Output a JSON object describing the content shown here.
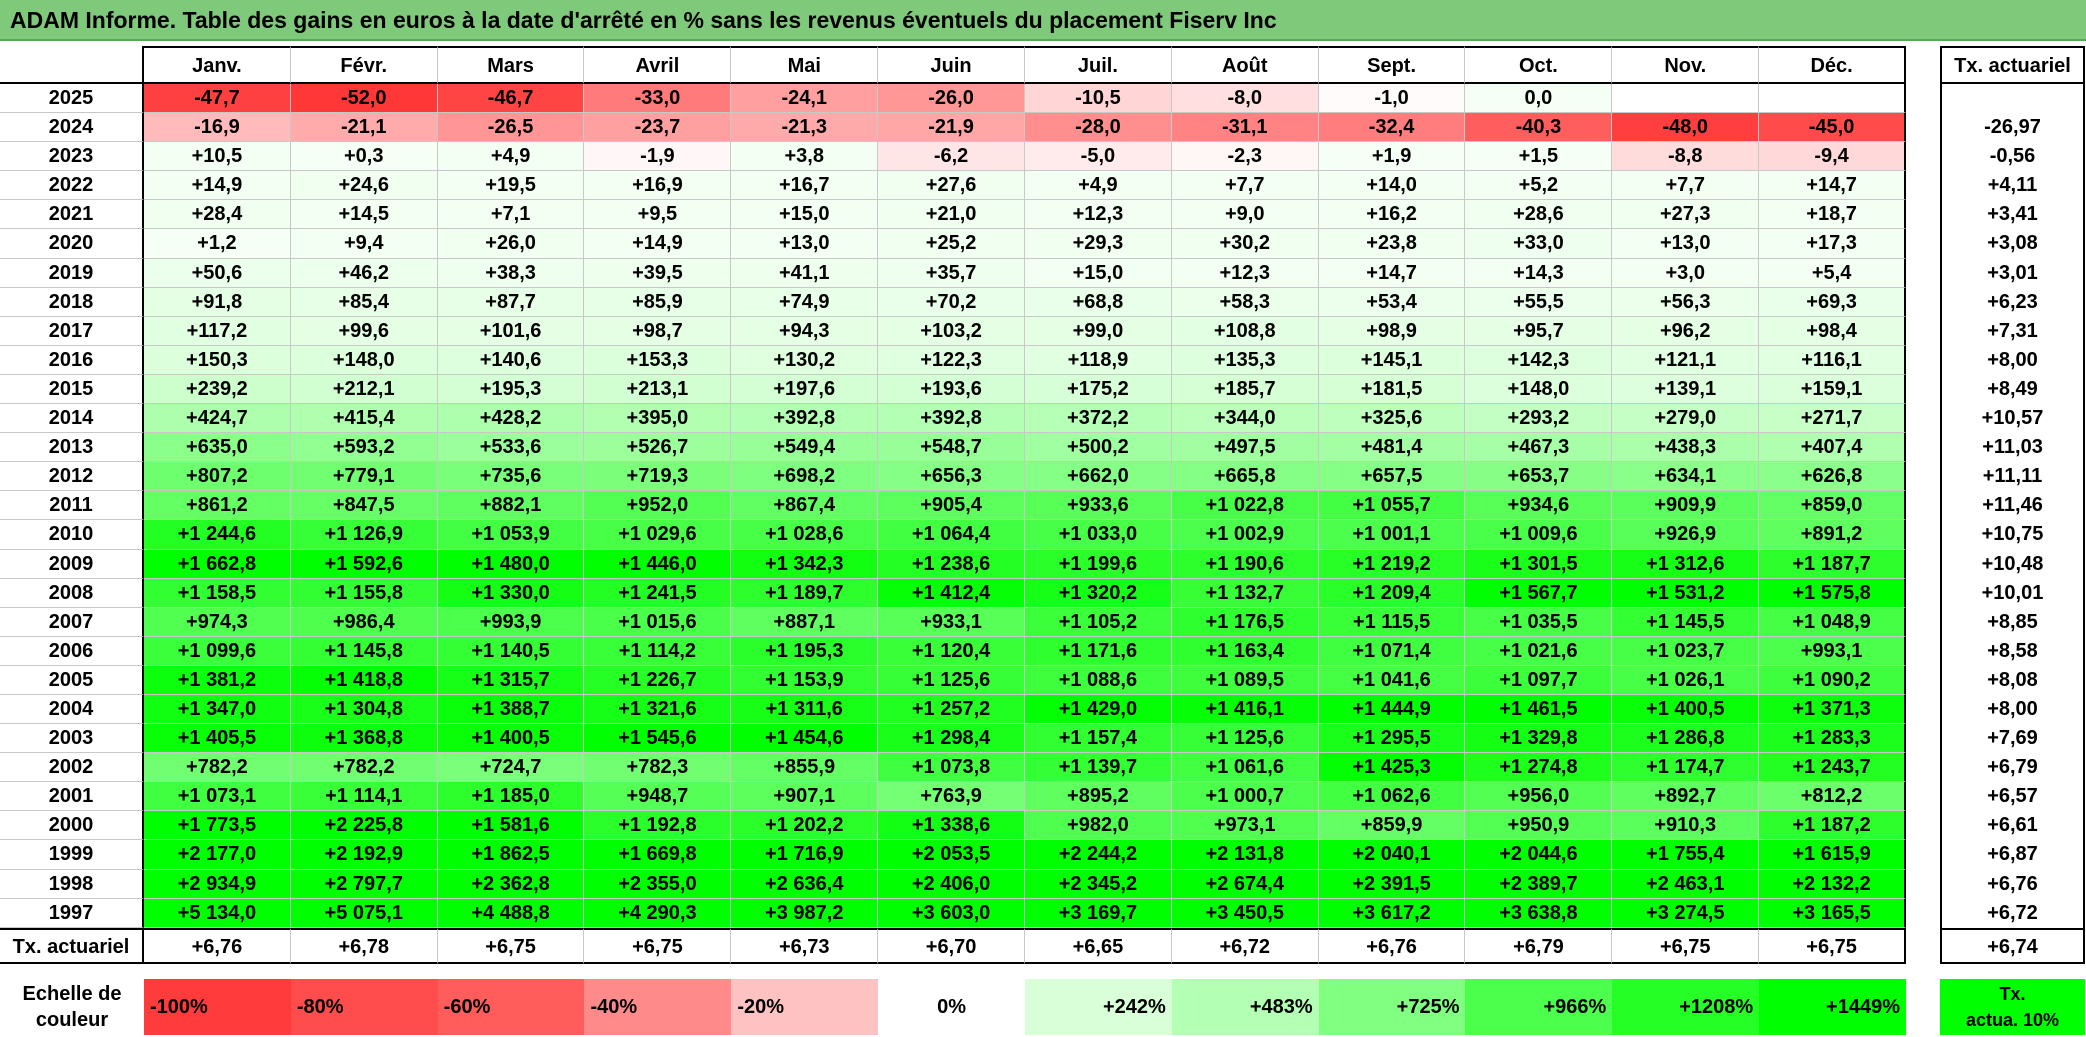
{
  "title": "ADAM Informe. Table des gains en euros à la date d'arrêté en % sans les revenus éventuels du placement Fiserv Inc",
  "months": [
    "Janv.",
    "Févr.",
    "Mars",
    "Avril",
    "Mai",
    "Juin",
    "Juil.",
    "Août",
    "Sept.",
    "Oct.",
    "Nov.",
    "Déc."
  ],
  "rate_header": "Tx. actuariel",
  "footer_label": "Tx. actuariel",
  "rows": [
    {
      "year": "2025",
      "values": [
        "-47,7",
        "-52,0",
        "-46,7",
        "-33,0",
        "-24,1",
        "-26,0",
        "-10,5",
        "-8,0",
        "-1,0",
        "0,0",
        "",
        ""
      ],
      "rate": ""
    },
    {
      "year": "2024",
      "values": [
        "-16,9",
        "-21,1",
        "-26,5",
        "-23,7",
        "-21,3",
        "-21,9",
        "-28,0",
        "-31,1",
        "-32,4",
        "-40,3",
        "-48,0",
        "-45,0"
      ],
      "rate": "-26,97"
    },
    {
      "year": "2023",
      "values": [
        "+10,5",
        "+0,3",
        "+4,9",
        "-1,9",
        "+3,8",
        "-6,2",
        "-5,0",
        "-2,3",
        "+1,9",
        "+1,5",
        "-8,8",
        "-9,4"
      ],
      "rate": "-0,56"
    },
    {
      "year": "2022",
      "values": [
        "+14,9",
        "+24,6",
        "+19,5",
        "+16,9",
        "+16,7",
        "+27,6",
        "+4,9",
        "+7,7",
        "+14,0",
        "+5,2",
        "+7,7",
        "+14,7"
      ],
      "rate": "+4,11"
    },
    {
      "year": "2021",
      "values": [
        "+28,4",
        "+14,5",
        "+7,1",
        "+9,5",
        "+15,0",
        "+21,0",
        "+12,3",
        "+9,0",
        "+16,2",
        "+28,6",
        "+27,3",
        "+18,7"
      ],
      "rate": "+3,41"
    },
    {
      "year": "2020",
      "values": [
        "+1,2",
        "+9,4",
        "+26,0",
        "+14,9",
        "+13,0",
        "+25,2",
        "+29,3",
        "+30,2",
        "+23,8",
        "+33,0",
        "+13,0",
        "+17,3"
      ],
      "rate": "+3,08"
    },
    {
      "year": "2019",
      "values": [
        "+50,6",
        "+46,2",
        "+38,3",
        "+39,5",
        "+41,1",
        "+35,7",
        "+15,0",
        "+12,3",
        "+14,7",
        "+14,3",
        "+3,0",
        "+5,4"
      ],
      "rate": "+3,01"
    },
    {
      "year": "2018",
      "values": [
        "+91,8",
        "+85,4",
        "+87,7",
        "+85,9",
        "+74,9",
        "+70,2",
        "+68,8",
        "+58,3",
        "+53,4",
        "+55,5",
        "+56,3",
        "+69,3"
      ],
      "rate": "+6,23"
    },
    {
      "year": "2017",
      "values": [
        "+117,2",
        "+99,6",
        "+101,6",
        "+98,7",
        "+94,3",
        "+103,2",
        "+99,0",
        "+108,8",
        "+98,9",
        "+95,7",
        "+96,2",
        "+98,4"
      ],
      "rate": "+7,31"
    },
    {
      "year": "2016",
      "values": [
        "+150,3",
        "+148,0",
        "+140,6",
        "+153,3",
        "+130,2",
        "+122,3",
        "+118,9",
        "+135,3",
        "+145,1",
        "+142,3",
        "+121,1",
        "+116,1"
      ],
      "rate": "+8,00"
    },
    {
      "year": "2015",
      "values": [
        "+239,2",
        "+212,1",
        "+195,3",
        "+213,1",
        "+197,6",
        "+193,6",
        "+175,2",
        "+185,7",
        "+181,5",
        "+148,0",
        "+139,1",
        "+159,1"
      ],
      "rate": "+8,49"
    },
    {
      "year": "2014",
      "values": [
        "+424,7",
        "+415,4",
        "+428,2",
        "+395,0",
        "+392,8",
        "+392,8",
        "+372,2",
        "+344,0",
        "+325,6",
        "+293,2",
        "+279,0",
        "+271,7"
      ],
      "rate": "+10,57"
    },
    {
      "year": "2013",
      "values": [
        "+635,0",
        "+593,2",
        "+533,6",
        "+526,7",
        "+549,4",
        "+548,7",
        "+500,2",
        "+497,5",
        "+481,4",
        "+467,3",
        "+438,3",
        "+407,4"
      ],
      "rate": "+11,03"
    },
    {
      "year": "2012",
      "values": [
        "+807,2",
        "+779,1",
        "+735,6",
        "+719,3",
        "+698,2",
        "+656,3",
        "+662,0",
        "+665,8",
        "+657,5",
        "+653,7",
        "+634,1",
        "+626,8"
      ],
      "rate": "+11,11"
    },
    {
      "year": "2011",
      "values": [
        "+861,2",
        "+847,5",
        "+882,1",
        "+952,0",
        "+867,4",
        "+905,4",
        "+933,6",
        "+1 022,8",
        "+1 055,7",
        "+934,6",
        "+909,9",
        "+859,0"
      ],
      "rate": "+11,46"
    },
    {
      "year": "2010",
      "values": [
        "+1 244,6",
        "+1 126,9",
        "+1 053,9",
        "+1 029,6",
        "+1 028,6",
        "+1 064,4",
        "+1 033,0",
        "+1 002,9",
        "+1 001,1",
        "+1 009,6",
        "+926,9",
        "+891,2"
      ],
      "rate": "+10,75"
    },
    {
      "year": "2009",
      "values": [
        "+1 662,8",
        "+1 592,6",
        "+1 480,0",
        "+1 446,0",
        "+1 342,3",
        "+1 238,6",
        "+1 199,6",
        "+1 190,6",
        "+1 219,2",
        "+1 301,5",
        "+1 312,6",
        "+1 187,7"
      ],
      "rate": "+10,48"
    },
    {
      "year": "2008",
      "values": [
        "+1 158,5",
        "+1 155,8",
        "+1 330,0",
        "+1 241,5",
        "+1 189,7",
        "+1 412,4",
        "+1 320,2",
        "+1 132,7",
        "+1 209,4",
        "+1 567,7",
        "+1 531,2",
        "+1 575,8"
      ],
      "rate": "+10,01"
    },
    {
      "year": "2007",
      "values": [
        "+974,3",
        "+986,4",
        "+993,9",
        "+1 015,6",
        "+887,1",
        "+933,1",
        "+1 105,2",
        "+1 176,5",
        "+1 115,5",
        "+1 035,5",
        "+1 145,5",
        "+1 048,9"
      ],
      "rate": "+8,85"
    },
    {
      "year": "2006",
      "values": [
        "+1 099,6",
        "+1 145,8",
        "+1 140,5",
        "+1 114,2",
        "+1 195,3",
        "+1 120,4",
        "+1 171,6",
        "+1 163,4",
        "+1 071,4",
        "+1 021,6",
        "+1 023,7",
        "+993,1"
      ],
      "rate": "+8,58"
    },
    {
      "year": "2005",
      "values": [
        "+1 381,2",
        "+1 418,8",
        "+1 315,7",
        "+1 226,7",
        "+1 153,9",
        "+1 125,6",
        "+1 088,6",
        "+1 089,5",
        "+1 041,6",
        "+1 097,7",
        "+1 026,1",
        "+1 090,2"
      ],
      "rate": "+8,08"
    },
    {
      "year": "2004",
      "values": [
        "+1 347,0",
        "+1 304,8",
        "+1 388,7",
        "+1 321,6",
        "+1 311,6",
        "+1 257,2",
        "+1 429,0",
        "+1 416,1",
        "+1 444,9",
        "+1 461,5",
        "+1 400,5",
        "+1 371,3"
      ],
      "rate": "+8,00"
    },
    {
      "year": "2003",
      "values": [
        "+1 405,5",
        "+1 368,8",
        "+1 400,5",
        "+1 545,6",
        "+1 454,6",
        "+1 298,4",
        "+1 157,4",
        "+1 125,6",
        "+1 295,5",
        "+1 329,8",
        "+1 286,8",
        "+1 283,3"
      ],
      "rate": "+7,69"
    },
    {
      "year": "2002",
      "values": [
        "+782,2",
        "+782,2",
        "+724,7",
        "+782,3",
        "+855,9",
        "+1 073,8",
        "+1 139,7",
        "+1 061,6",
        "+1 425,3",
        "+1 274,8",
        "+1 174,7",
        "+1 243,7"
      ],
      "rate": "+6,79"
    },
    {
      "year": "2001",
      "values": [
        "+1 073,1",
        "+1 114,1",
        "+1 185,0",
        "+948,7",
        "+907,1",
        "+763,9",
        "+895,2",
        "+1 000,7",
        "+1 062,6",
        "+956,0",
        "+892,7",
        "+812,2"
      ],
      "rate": "+6,57"
    },
    {
      "year": "2000",
      "values": [
        "+1 773,5",
        "+2 225,8",
        "+1 581,6",
        "+1 192,8",
        "+1 202,2",
        "+1 338,6",
        "+982,0",
        "+973,1",
        "+859,9",
        "+950,9",
        "+910,3",
        "+1 187,2"
      ],
      "rate": "+6,61"
    },
    {
      "year": "1999",
      "values": [
        "+2 177,0",
        "+2 192,9",
        "+1 862,5",
        "+1 669,8",
        "+1 716,9",
        "+2 053,5",
        "+2 244,2",
        "+2 131,8",
        "+2 040,1",
        "+2 044,6",
        "+1 755,4",
        "+1 615,9"
      ],
      "rate": "+6,87"
    },
    {
      "year": "1998",
      "values": [
        "+2 934,9",
        "+2 797,7",
        "+2 362,8",
        "+2 355,0",
        "+2 636,4",
        "+2 406,0",
        "+2 345,2",
        "+2 674,4",
        "+2 391,5",
        "+2 389,7",
        "+2 463,1",
        "+2 132,2"
      ],
      "rate": "+6,76"
    },
    {
      "year": "1997",
      "values": [
        "+5 134,0",
        "+5 075,1",
        "+4 488,8",
        "+4 290,3",
        "+3 987,2",
        "+3 603,0",
        "+3 169,7",
        "+3 450,5",
        "+3 617,2",
        "+3 638,8",
        "+3 274,5",
        "+3 165,5"
      ],
      "rate": "+6,72"
    }
  ],
  "footer_values": [
    "+6,76",
    "+6,78",
    "+6,75",
    "+6,75",
    "+6,73",
    "+6,70",
    "+6,65",
    "+6,72",
    "+6,76",
    "+6,79",
    "+6,75",
    "+6,75"
  ],
  "footer_rate": "+6,74",
  "scale": {
    "label_line1": "Echelle de",
    "label_line2": "couleur",
    "steps": [
      {
        "label": "-100%",
        "color": "#ff3b3b",
        "align": "left"
      },
      {
        "label": "-80%",
        "color": "#ff4d4d",
        "align": "left"
      },
      {
        "label": "-60%",
        "color": "#ff5c5c",
        "align": "left"
      },
      {
        "label": "-40%",
        "color": "#ff8a8a",
        "align": "left"
      },
      {
        "label": "-20%",
        "color": "#ffc2c2",
        "align": "left"
      },
      {
        "label": "0%",
        "color": "#ffffff",
        "align": "center"
      },
      {
        "label": "+242%",
        "color": "#d9ffd9",
        "align": "right"
      },
      {
        "label": "+483%",
        "color": "#b3ffb3",
        "align": "right"
      },
      {
        "label": "+725%",
        "color": "#80ff80",
        "align": "right"
      },
      {
        "label": "+966%",
        "color": "#4dff4d",
        "align": "right"
      },
      {
        "label": "+1208%",
        "color": "#26ff26",
        "align": "right"
      },
      {
        "label": "+1449%",
        "color": "#00ff00",
        "align": "right"
      }
    ],
    "rate_line1": "Tx.",
    "rate_line2": "actua. 10%",
    "rate_color": "#00ff00"
  }
}
